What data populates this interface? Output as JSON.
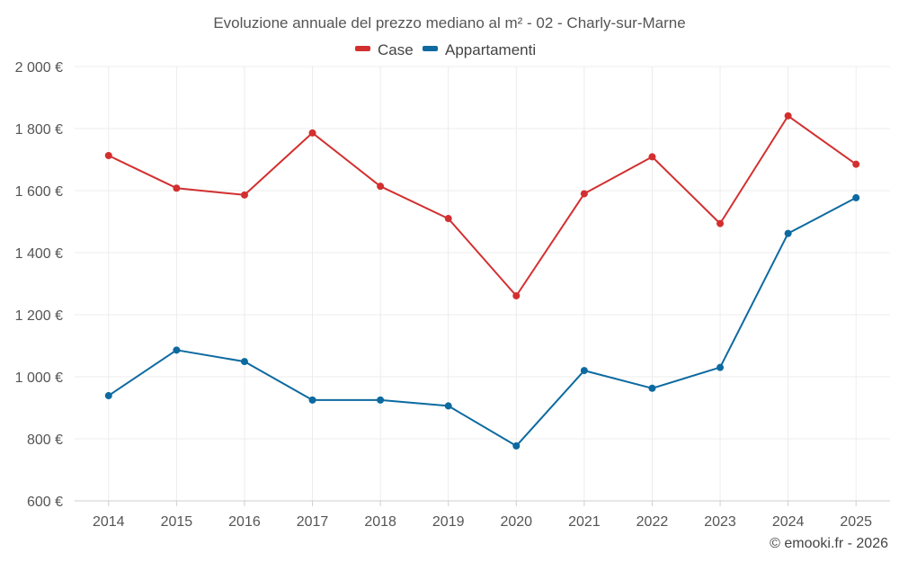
{
  "chart_data": {
    "type": "line",
    "title": "Evoluzione annuale del prezzo mediano al m² - 02 - Charly-sur-Marne",
    "categories": [
      "2014",
      "2015",
      "2016",
      "2017",
      "2018",
      "2019",
      "2020",
      "2021",
      "2022",
      "2023",
      "2024",
      "2025"
    ],
    "series": [
      {
        "name": "Case",
        "color": "#d32f2f",
        "values": [
          1713,
          1608,
          1586,
          1786,
          1614,
          1510,
          1261,
          1590,
          1709,
          1494,
          1841,
          1685
        ]
      },
      {
        "name": "Appartamenti",
        "color": "#0d6aa0",
        "values": [
          939,
          1086,
          1049,
          925,
          925,
          906,
          777,
          1020,
          963,
          1030,
          1462,
          1577
        ]
      }
    ],
    "ylim": [
      600,
      2000
    ],
    "yticks": [
      600,
      800,
      1000,
      1200,
      1400,
      1600,
      1800,
      2000
    ],
    "ytick_labels": [
      "600 €",
      "800 €",
      "1 000 €",
      "1 200 €",
      "1 400 €",
      "1 600 €",
      "1 800 €",
      "2 000 €"
    ],
    "xlabel": "",
    "ylabel": "",
    "grid": true,
    "legend": "top-center"
  },
  "credit": "© emooki.fr - 2026"
}
